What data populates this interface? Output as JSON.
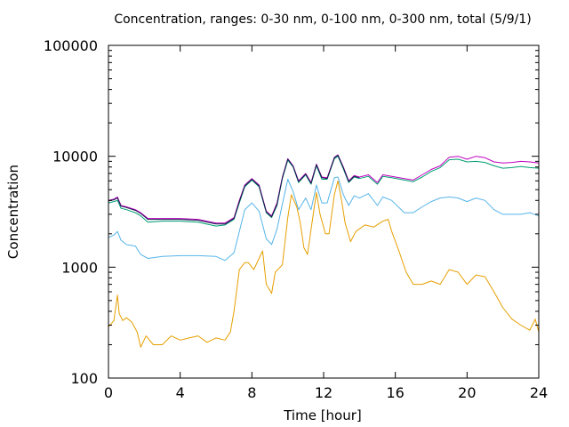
{
  "chart_data": {
    "type": "line",
    "title": "Concentration, ranges: 0-30 nm, 0-100 nm, 0-300 nm, total (5/9/1)",
    "xlabel": "Time [hour]",
    "ylabel": "Concentration",
    "xlim": [
      0,
      24
    ],
    "ylim": [
      100,
      100000
    ],
    "yscale": "log",
    "grid": false,
    "legend": "none",
    "xticks": [
      0,
      4,
      8,
      12,
      16,
      20,
      24
    ],
    "yticks": [
      100,
      1000,
      10000,
      100000
    ],
    "ytick_labels": [
      "100",
      "1000",
      "10000",
      "100000"
    ],
    "series": [
      {
        "color": "#c000c0",
        "points": [
          [
            0,
            4000
          ],
          [
            0.3,
            4100
          ],
          [
            0.5,
            4300
          ],
          [
            0.7,
            3600
          ],
          [
            1,
            3500
          ],
          [
            1.5,
            3300
          ],
          [
            1.8,
            3100
          ],
          [
            2.2,
            2750
          ],
          [
            3,
            2750
          ],
          [
            4,
            2750
          ],
          [
            5,
            2700
          ],
          [
            6,
            2500
          ],
          [
            6.5,
            2500
          ],
          [
            7,
            2800
          ],
          [
            7.3,
            4000
          ],
          [
            7.6,
            5500
          ],
          [
            8,
            6300
          ],
          [
            8.4,
            5500
          ],
          [
            8.8,
            3200
          ],
          [
            9.1,
            2900
          ],
          [
            9.4,
            3800
          ],
          [
            9.7,
            6500
          ],
          [
            10,
            9500
          ],
          [
            10.3,
            8200
          ],
          [
            10.6,
            6000
          ],
          [
            11,
            7000
          ],
          [
            11.3,
            5800
          ],
          [
            11.6,
            8500
          ],
          [
            11.9,
            6500
          ],
          [
            12.2,
            6400
          ],
          [
            12.6,
            9800
          ],
          [
            12.8,
            10300
          ],
          [
            13.1,
            8000
          ],
          [
            13.4,
            6000
          ],
          [
            13.7,
            6700
          ],
          [
            14,
            6500
          ],
          [
            14.5,
            6800
          ],
          [
            15,
            5800
          ],
          [
            15.3,
            6800
          ],
          [
            15.8,
            6600
          ],
          [
            16.5,
            6300
          ],
          [
            17,
            6100
          ],
          [
            17.5,
            6800
          ],
          [
            18,
            7600
          ],
          [
            18.5,
            8200
          ],
          [
            19,
            9800
          ],
          [
            19.5,
            10000
          ],
          [
            20,
            9400
          ],
          [
            20.5,
            10000
          ],
          [
            21,
            9700
          ],
          [
            21.5,
            8900
          ],
          [
            22,
            8700
          ],
          [
            22.5,
            8800
          ],
          [
            23,
            9000
          ],
          [
            23.5,
            8900
          ],
          [
            24,
            8700
          ]
        ]
      },
      {
        "color": "#009e73",
        "points": [
          [
            0,
            3800
          ],
          [
            0.3,
            3900
          ],
          [
            0.5,
            4000
          ],
          [
            0.7,
            3400
          ],
          [
            1,
            3300
          ],
          [
            1.5,
            3100
          ],
          [
            1.8,
            2900
          ],
          [
            2.2,
            2550
          ],
          [
            3,
            2600
          ],
          [
            4,
            2600
          ],
          [
            5,
            2550
          ],
          [
            6,
            2350
          ],
          [
            6.5,
            2400
          ],
          [
            7,
            2700
          ],
          [
            7.3,
            3800
          ],
          [
            7.6,
            5300
          ],
          [
            8,
            6100
          ],
          [
            8.4,
            5300
          ],
          [
            8.8,
            3100
          ],
          [
            9.1,
            2800
          ],
          [
            9.4,
            3600
          ],
          [
            9.7,
            6300
          ],
          [
            10,
            9200
          ],
          [
            10.3,
            8000
          ],
          [
            10.6,
            5800
          ],
          [
            11,
            6800
          ],
          [
            11.3,
            5600
          ],
          [
            11.6,
            8200
          ],
          [
            11.9,
            6200
          ],
          [
            12.2,
            6200
          ],
          [
            12.6,
            9500
          ],
          [
            12.8,
            10000
          ],
          [
            13.1,
            7700
          ],
          [
            13.4,
            5800
          ],
          [
            13.7,
            6500
          ],
          [
            14,
            6300
          ],
          [
            14.5,
            6600
          ],
          [
            15,
            5600
          ],
          [
            15.3,
            6600
          ],
          [
            15.8,
            6400
          ],
          [
            16.5,
            6100
          ],
          [
            17,
            5900
          ],
          [
            17.5,
            6500
          ],
          [
            18,
            7300
          ],
          [
            18.5,
            7900
          ],
          [
            19,
            9300
          ],
          [
            19.5,
            9400
          ],
          [
            20,
            8900
          ],
          [
            20.5,
            9000
          ],
          [
            21,
            8800
          ],
          [
            21.5,
            8200
          ],
          [
            22,
            7800
          ],
          [
            22.5,
            7900
          ],
          [
            23,
            8100
          ],
          [
            23.5,
            7900
          ],
          [
            24,
            7800
          ]
        ]
      },
      {
        "color": "#56b4e9",
        "points": [
          [
            0,
            1850
          ],
          [
            0.3,
            1950
          ],
          [
            0.5,
            2100
          ],
          [
            0.7,
            1750
          ],
          [
            1,
            1600
          ],
          [
            1.5,
            1550
          ],
          [
            1.8,
            1300
          ],
          [
            2.2,
            1200
          ],
          [
            3,
            1250
          ],
          [
            4,
            1270
          ],
          [
            5,
            1270
          ],
          [
            6,
            1250
          ],
          [
            6.5,
            1150
          ],
          [
            7,
            1350
          ],
          [
            7.3,
            2100
          ],
          [
            7.6,
            3300
          ],
          [
            8,
            3800
          ],
          [
            8.4,
            3200
          ],
          [
            8.8,
            1800
          ],
          [
            9.1,
            1600
          ],
          [
            9.4,
            2200
          ],
          [
            9.7,
            3700
          ],
          [
            10,
            6200
          ],
          [
            10.3,
            4800
          ],
          [
            10.6,
            3300
          ],
          [
            11,
            4200
          ],
          [
            11.3,
            3300
          ],
          [
            11.6,
            5500
          ],
          [
            11.9,
            3800
          ],
          [
            12.2,
            3800
          ],
          [
            12.6,
            6400
          ],
          [
            12.8,
            6500
          ],
          [
            13.1,
            4500
          ],
          [
            13.4,
            3600
          ],
          [
            13.7,
            4400
          ],
          [
            14,
            4200
          ],
          [
            14.5,
            4600
          ],
          [
            15,
            3600
          ],
          [
            15.3,
            4300
          ],
          [
            15.8,
            4000
          ],
          [
            16.5,
            3100
          ],
          [
            17,
            3100
          ],
          [
            17.5,
            3500
          ],
          [
            18,
            3900
          ],
          [
            18.5,
            4200
          ],
          [
            19,
            4300
          ],
          [
            19.5,
            4200
          ],
          [
            20,
            3900
          ],
          [
            20.5,
            4200
          ],
          [
            21,
            4000
          ],
          [
            21.5,
            3300
          ],
          [
            22,
            3000
          ],
          [
            22.5,
            3000
          ],
          [
            23,
            3000
          ],
          [
            23.5,
            3100
          ],
          [
            24,
            2900
          ]
        ]
      },
      {
        "color": "#e69f00",
        "points": [
          [
            0,
            290
          ],
          [
            0.3,
            330
          ],
          [
            0.5,
            560
          ],
          [
            0.6,
            380
          ],
          [
            0.8,
            330
          ],
          [
            1,
            350
          ],
          [
            1.3,
            320
          ],
          [
            1.6,
            260
          ],
          [
            1.8,
            190
          ],
          [
            2.1,
            240
          ],
          [
            2.5,
            200
          ],
          [
            3,
            200
          ],
          [
            3.5,
            240
          ],
          [
            4,
            220
          ],
          [
            4.5,
            230
          ],
          [
            5,
            240
          ],
          [
            5.5,
            210
          ],
          [
            6,
            230
          ],
          [
            6.5,
            220
          ],
          [
            6.8,
            260
          ],
          [
            7,
            400
          ],
          [
            7.3,
            950
          ],
          [
            7.6,
            1100
          ],
          [
            7.8,
            1100
          ],
          [
            8.1,
            950
          ],
          [
            8.4,
            1200
          ],
          [
            8.6,
            1400
          ],
          [
            8.8,
            700
          ],
          [
            9.1,
            580
          ],
          [
            9.3,
            900
          ],
          [
            9.7,
            1050
          ],
          [
            10,
            2800
          ],
          [
            10.2,
            4500
          ],
          [
            10.5,
            3500
          ],
          [
            10.7,
            2500
          ],
          [
            10.9,
            1500
          ],
          [
            11.1,
            1300
          ],
          [
            11.3,
            2200
          ],
          [
            11.6,
            4700
          ],
          [
            11.8,
            3000
          ],
          [
            12.1,
            2000
          ],
          [
            12.3,
            2000
          ],
          [
            12.6,
            4500
          ],
          [
            12.8,
            6000
          ],
          [
            13,
            4000
          ],
          [
            13.2,
            2500
          ],
          [
            13.5,
            1700
          ],
          [
            13.8,
            2100
          ],
          [
            14.3,
            2400
          ],
          [
            14.8,
            2300
          ],
          [
            15.3,
            2600
          ],
          [
            15.6,
            2700
          ],
          [
            15.8,
            2100
          ],
          [
            16.2,
            1400
          ],
          [
            16.6,
            900
          ],
          [
            17,
            700
          ],
          [
            17.5,
            700
          ],
          [
            18,
            750
          ],
          [
            18.5,
            700
          ],
          [
            19,
            950
          ],
          [
            19.5,
            900
          ],
          [
            20,
            700
          ],
          [
            20.5,
            850
          ],
          [
            21,
            820
          ],
          [
            21.5,
            600
          ],
          [
            22,
            430
          ],
          [
            22.5,
            340
          ],
          [
            23,
            300
          ],
          [
            23.5,
            270
          ],
          [
            23.8,
            340
          ],
          [
            24,
            260
          ]
        ]
      },
      {
        "color": "#1b1b50",
        "points": [
          [
            0,
            3950
          ],
          [
            0.3,
            4050
          ],
          [
            0.5,
            4200
          ],
          [
            0.7,
            3550
          ],
          [
            1,
            3450
          ],
          [
            1.5,
            3250
          ],
          [
            1.8,
            3050
          ],
          [
            2.2,
            2700
          ],
          [
            3,
            2700
          ],
          [
            4,
            2700
          ],
          [
            5,
            2650
          ],
          [
            6,
            2450
          ],
          [
            6.5,
            2450
          ],
          [
            7,
            2750
          ],
          [
            7.3,
            3900
          ],
          [
            7.6,
            5400
          ],
          [
            8,
            6200
          ],
          [
            8.4,
            5400
          ],
          [
            8.8,
            3150
          ],
          [
            9.1,
            2850
          ],
          [
            9.4,
            3700
          ],
          [
            9.7,
            6400
          ],
          [
            10,
            9400
          ],
          [
            10.3,
            8100
          ],
          [
            10.6,
            5900
          ],
          [
            11,
            6900
          ],
          [
            11.3,
            5700
          ],
          [
            11.6,
            8400
          ],
          [
            11.9,
            6400
          ],
          [
            12.2,
            6300
          ],
          [
            12.6,
            9700
          ],
          [
            12.8,
            10200
          ],
          [
            13.1,
            7900
          ],
          [
            13.4,
            5900
          ],
          [
            13.7,
            6600
          ],
          [
            14,
            6400
          ]
        ]
      }
    ]
  }
}
